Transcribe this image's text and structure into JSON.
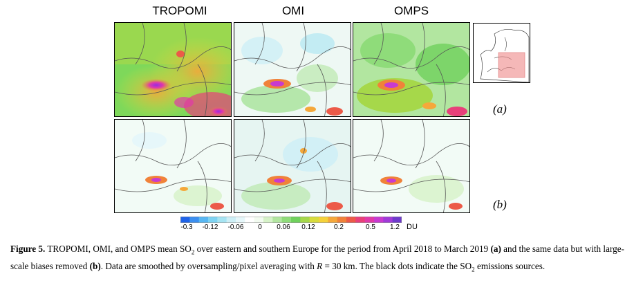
{
  "columns": [
    "TROPOMI",
    "OMI",
    "OMPS"
  ],
  "row_labels": [
    "(a)",
    "(b)"
  ],
  "colorbar": {
    "ticks": [
      "-0.3",
      "-0.12",
      "-0.06",
      "0",
      "0.06",
      "0.12",
      "0.2",
      "0.5",
      "1.2"
    ],
    "unit": "DU",
    "colors": [
      "#1e63e8",
      "#3b8ff0",
      "#58b7f2",
      "#7ed3f2",
      "#a6e4f2",
      "#cdeff6",
      "#e6f7fa",
      "#ffffff",
      "#f2fbf0",
      "#d6f2c8",
      "#b2e6a0",
      "#8fdc7a",
      "#6fd15c",
      "#a6d84a",
      "#d8dc3c",
      "#f5d23a",
      "#f5a83a",
      "#f0823a",
      "#ec5a48",
      "#e8407a",
      "#e03aa8",
      "#c83ad0",
      "#a03ad8",
      "#6e3acc"
    ]
  },
  "caption": {
    "label": "Figure 5.",
    "part1": " TROPOMI, OMI, and OMPS mean SO",
    "sub1": "2",
    "part2": " over eastern and southern Europe for the period from April 2018 to March 2019 ",
    "bold_a": "(a)",
    "part3": " and the same data but with large-scale biases removed ",
    "bold_b": "(b)",
    "part4": ". Data are smoothed by oversampling/pixel averaging with ",
    "r_var": "R",
    "part5": " = 30 km. The black dots indicate the SO",
    "sub2": "2",
    "part6": " emissions sources."
  }
}
